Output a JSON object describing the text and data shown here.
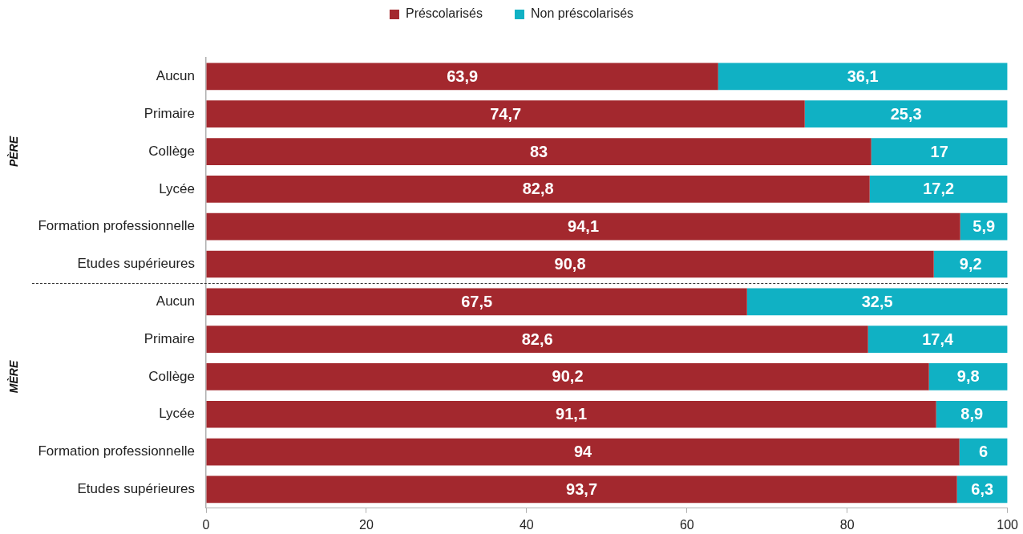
{
  "chart_data": {
    "type": "bar",
    "orientation": "horizontal",
    "stacked": true,
    "categories": [
      "Aucun",
      "Primaire",
      "Collège",
      "Lycée",
      "Formation professionnelle",
      "Etudes supérieures",
      "Aucun",
      "Primaire",
      "Collège",
      "Lycée",
      "Formation professionnelle",
      "Etudes supérieures"
    ],
    "series": [
      {
        "name": "Préscolarisés",
        "color": "#a3282e",
        "values": [
          63.9,
          74.7,
          83,
          82.8,
          94.1,
          90.8,
          67.5,
          82.6,
          90.2,
          91.1,
          94,
          93.7
        ],
        "value_labels": [
          "63,9",
          "74,7",
          "83",
          "82,8",
          "94,1",
          "90,8",
          "67,5",
          "82,6",
          "90,2",
          "91,1",
          "94",
          "93,7"
        ]
      },
      {
        "name": "Non préscolarisés",
        "color": "#10b1c4",
        "values": [
          36.1,
          25.3,
          17,
          17.2,
          5.9,
          9.2,
          32.5,
          17.4,
          9.8,
          8.9,
          6,
          6.3
        ],
        "value_labels": [
          "36,1",
          "25,3",
          "17",
          "17,2",
          "5,9",
          "9,2",
          "32,5",
          "17,4",
          "9,8",
          "8,9",
          "6",
          "6,3"
        ]
      }
    ],
    "xlim": [
      0,
      100
    ],
    "xticks": [
      0,
      20,
      40,
      60,
      80,
      100
    ],
    "grid": false,
    "legend": "top",
    "annotations": [
      "PÈRE",
      "MÈRE"
    ]
  }
}
